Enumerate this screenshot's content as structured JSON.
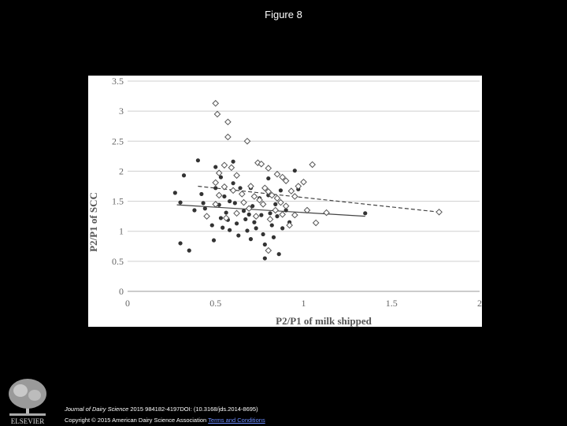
{
  "slide": {
    "title": "Figure 8"
  },
  "chart_data": {
    "type": "scatter",
    "title": "",
    "xlabel": "P2/P1 of milk shipped",
    "ylabel": "P2/P1 of SCC",
    "xlim": [
      0,
      2
    ],
    "ylim": [
      0,
      3.5
    ],
    "x_ticks": [
      "0",
      "0.5",
      "1",
      "1.5",
      "2"
    ],
    "y_ticks": [
      "0",
      "0.5",
      "1",
      "1.5",
      "2",
      "2.5",
      "3",
      "3.5"
    ],
    "grid": "horizontal",
    "legend": "none",
    "series": [
      {
        "marker": "filled-circle",
        "color": "#333333",
        "points": [
          [
            0.27,
            1.64
          ],
          [
            0.3,
            1.48
          ],
          [
            0.3,
            0.8
          ],
          [
            0.32,
            1.93
          ],
          [
            0.35,
            0.68
          ],
          [
            0.38,
            1.35
          ],
          [
            0.4,
            2.18
          ],
          [
            0.42,
            1.62
          ],
          [
            0.43,
            1.47
          ],
          [
            0.44,
            1.38
          ],
          [
            0.45,
            1.25
          ],
          [
            0.48,
            1.1
          ],
          [
            0.49,
            0.85
          ],
          [
            0.5,
            2.07
          ],
          [
            0.5,
            1.72
          ],
          [
            0.52,
            1.44
          ],
          [
            0.53,
            1.22
          ],
          [
            0.54,
            1.06
          ],
          [
            0.55,
            1.58
          ],
          [
            0.56,
            1.31
          ],
          [
            0.57,
            1.19
          ],
          [
            0.58,
            1.02
          ],
          [
            0.6,
            2.16
          ],
          [
            0.6,
            1.8
          ],
          [
            0.61,
            1.47
          ],
          [
            0.62,
            1.13
          ],
          [
            0.63,
            0.93
          ],
          [
            0.65,
            1.62
          ],
          [
            0.66,
            1.34
          ],
          [
            0.67,
            1.2
          ],
          [
            0.68,
            1.01
          ],
          [
            0.7,
            1.72
          ],
          [
            0.7,
            0.87
          ],
          [
            0.71,
            1.42
          ],
          [
            0.72,
            1.15
          ],
          [
            0.73,
            1.05
          ],
          [
            0.74,
            2.14
          ],
          [
            0.75,
            1.55
          ],
          [
            0.76,
            1.27
          ],
          [
            0.77,
            0.95
          ],
          [
            0.78,
            0.78
          ],
          [
            0.8,
            1.88
          ],
          [
            0.8,
            1.6
          ],
          [
            0.81,
            1.3
          ],
          [
            0.82,
            1.1
          ],
          [
            0.83,
            0.9
          ],
          [
            0.84,
            1.45
          ],
          [
            0.85,
            1.25
          ],
          [
            0.86,
            0.62
          ],
          [
            0.87,
            1.68
          ],
          [
            0.88,
            1.05
          ],
          [
            0.9,
            1.35
          ],
          [
            0.92,
            1.15
          ],
          [
            0.95,
            2.01
          ],
          [
            0.97,
            1.7
          ],
          [
            0.78,
            0.55
          ],
          [
            0.64,
            1.72
          ],
          [
            0.69,
            1.28
          ],
          [
            0.58,
            1.5
          ],
          [
            0.53,
            1.9
          ],
          [
            1.35,
            1.3
          ]
        ]
      },
      {
        "marker": "open-diamond",
        "color": "#555555",
        "points": [
          [
            0.5,
            3.13
          ],
          [
            0.51,
            2.95
          ],
          [
            0.57,
            2.82
          ],
          [
            0.57,
            2.57
          ],
          [
            0.68,
            2.5
          ],
          [
            0.55,
            2.1
          ],
          [
            0.52,
            1.97
          ],
          [
            0.59,
            2.06
          ],
          [
            0.62,
            1.93
          ],
          [
            0.74,
            2.14
          ],
          [
            0.76,
            2.12
          ],
          [
            0.8,
            2.05
          ],
          [
            0.85,
            1.95
          ],
          [
            0.88,
            1.9
          ],
          [
            0.9,
            1.84
          ],
          [
            0.5,
            1.81
          ],
          [
            0.55,
            1.74
          ],
          [
            0.6,
            1.68
          ],
          [
            0.65,
            1.62
          ],
          [
            0.7,
            1.75
          ],
          [
            0.72,
            1.58
          ],
          [
            0.75,
            1.52
          ],
          [
            0.78,
            1.72
          ],
          [
            0.8,
            1.66
          ],
          [
            0.82,
            1.6
          ],
          [
            0.85,
            1.55
          ],
          [
            0.87,
            1.48
          ],
          [
            0.9,
            1.42
          ],
          [
            0.93,
            1.67
          ],
          [
            0.95,
            1.58
          ],
          [
            0.97,
            1.75
          ],
          [
            1.0,
            1.82
          ],
          [
            1.02,
            1.35
          ],
          [
            1.05,
            2.11
          ],
          [
            1.07,
            1.14
          ],
          [
            1.13,
            1.31
          ],
          [
            0.45,
            1.25
          ],
          [
            0.5,
            1.45
          ],
          [
            0.52,
            1.6
          ],
          [
            0.56,
            1.22
          ],
          [
            0.62,
            1.3
          ],
          [
            0.66,
            1.48
          ],
          [
            0.69,
            1.38
          ],
          [
            0.73,
            1.25
          ],
          [
            0.77,
            1.45
          ],
          [
            0.81,
            1.2
          ],
          [
            0.84,
            1.35
          ],
          [
            0.88,
            1.28
          ],
          [
            0.92,
            1.1
          ],
          [
            0.95,
            1.27
          ],
          [
            0.8,
            0.68
          ],
          [
            1.77,
            1.32
          ]
        ]
      }
    ],
    "trendlines": [
      {
        "style": "solid",
        "from": [
          0.28,
          1.44
        ],
        "to": [
          1.35,
          1.25
        ]
      },
      {
        "style": "dashed",
        "from": [
          0.4,
          1.75
        ],
        "to": [
          1.77,
          1.32
        ]
      }
    ]
  },
  "footer": {
    "logo_text": "ELSEVIER",
    "journal": "Journal of Dairy Science",
    "citation": " 2015 984182-4197DOI: (10.3168/jds.2014-8695)",
    "copyright": "Copyright © 2015 American Dairy Science Association ",
    "terms_link": "Terms and Conditions"
  }
}
